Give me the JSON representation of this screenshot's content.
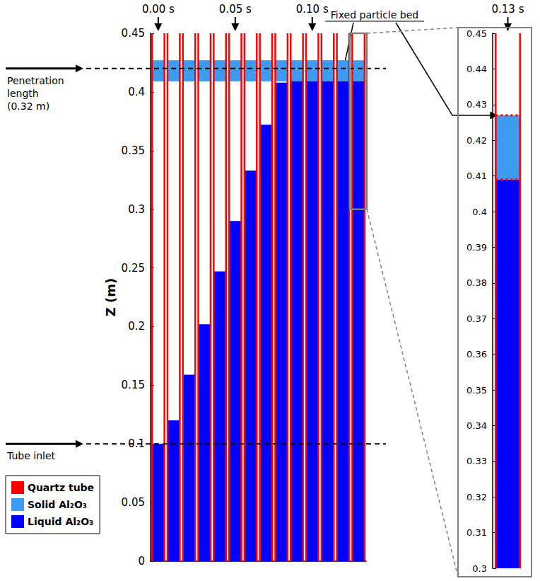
{
  "chart_data": [
    {
      "type": "tube_snapshots",
      "ylabel": "Z (m)",
      "ylim": [
        0,
        0.45
      ],
      "yticks": [
        0,
        0.05,
        0.1,
        0.15,
        0.2,
        0.25,
        0.3,
        0.35,
        0.4,
        0.45
      ],
      "tick_labels": "y",
      "x": [
        0,
        0.01,
        0.02,
        0.03,
        0.04,
        0.05,
        0.06,
        0.07,
        0.08,
        0.09,
        0.1,
        0.11,
        0.12,
        0.13
      ],
      "time_labels": [
        {
          "value": 0,
          "label": "0.00 s"
        },
        {
          "value": 0.05,
          "label": "0.05 s"
        },
        {
          "value": 0.1,
          "label": "0.10 s"
        }
      ],
      "series": [
        {
          "name": "Quartz tube",
          "color": "#ff0000",
          "marker": "walls",
          "low": [
            0,
            0,
            0,
            0,
            0,
            0,
            0,
            0,
            0,
            0,
            0,
            0,
            0,
            0
          ],
          "high": [
            0.45,
            0.45,
            0.45,
            0.45,
            0.45,
            0.45,
            0.45,
            0.45,
            0.45,
            0.45,
            0.45,
            0.45,
            0.45,
            0.45
          ]
        },
        {
          "name": "Solid Al₂O₃",
          "color": "#3d9bf0",
          "marker": "fill",
          "low": [
            0.409,
            0.409,
            0.409,
            0.409,
            0.409,
            0.409,
            0.409,
            0.409,
            0.409,
            0.409,
            0.409,
            0.409,
            0.409,
            0.409
          ],
          "high": [
            0.427,
            0.427,
            0.427,
            0.427,
            0.427,
            0.427,
            0.427,
            0.427,
            0.427,
            0.427,
            0.427,
            0.427,
            0.427,
            0.427
          ]
        },
        {
          "name": "Liquid Al₂O₃",
          "color": "#0000ff",
          "marker": "fill",
          "low": [
            0,
            0,
            0,
            0,
            0,
            0,
            0,
            0,
            0,
            0,
            0,
            0,
            0,
            0
          ],
          "high": [
            0.1,
            0.12,
            0.159,
            0.202,
            0.247,
            0.29,
            0.333,
            0.372,
            0.408,
            0.409,
            0.409,
            0.409,
            0.409,
            0.409
          ]
        }
      ],
      "reference_lines": [
        {
          "y": 0.42,
          "label": "Penetration length (0.32 m)"
        },
        {
          "y": 0.1,
          "label": "Tube inlet"
        }
      ],
      "annotations": [
        {
          "text": "Fixed particle bed",
          "x": 0.12,
          "y": 0.418
        }
      ],
      "legend": "lower left"
    },
    {
      "type": "tube_zoom",
      "title": "0.13 s",
      "ylim": [
        0.3,
        0.45
      ],
      "yticks": [
        0.3,
        0.31,
        0.32,
        0.33,
        0.34,
        0.35,
        0.36,
        0.37,
        0.38,
        0.39,
        0.4,
        0.41,
        0.42,
        0.43,
        0.44,
        0.45
      ],
      "tick_labels": "y",
      "x": [
        0.13
      ],
      "series": [
        {
          "name": "Quartz tube",
          "color": "#ff0000",
          "marker": "walls",
          "low": [
            0
          ],
          "high": [
            0.45
          ]
        },
        {
          "name": "Solid Al₂O₃",
          "color": "#3d9bf0",
          "marker": "fill",
          "low": [
            0.409
          ],
          "high": [
            0.427
          ]
        },
        {
          "name": "Liquid Al₂O₃",
          "color": "#0000ff",
          "marker": "fill",
          "low": [
            0
          ],
          "high": [
            0.409
          ]
        }
      ],
      "bed_bounds": [
        0.409,
        0.427
      ]
    }
  ]
}
